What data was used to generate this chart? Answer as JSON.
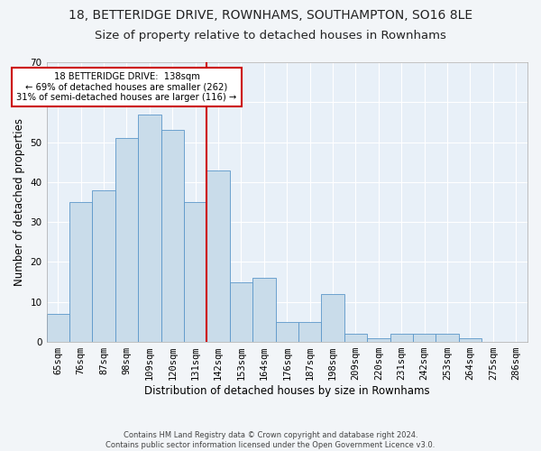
{
  "title1": "18, BETTERIDGE DRIVE, ROWNHAMS, SOUTHAMPTON, SO16 8LE",
  "title2": "Size of property relative to detached houses in Rownhams",
  "xlabel": "Distribution of detached houses by size in Rownhams",
  "ylabel": "Number of detached properties",
  "footer1": "Contains HM Land Registry data © Crown copyright and database right 2024.",
  "footer2": "Contains public sector information licensed under the Open Government Licence v3.0.",
  "bar_labels": [
    "65sqm",
    "76sqm",
    "87sqm",
    "98sqm",
    "109sqm",
    "120sqm",
    "131sqm",
    "142sqm",
    "153sqm",
    "164sqm",
    "176sqm",
    "187sqm",
    "198sqm",
    "209sqm",
    "220sqm",
    "231sqm",
    "242sqm",
    "253sqm",
    "264sqm",
    "275sqm",
    "286sqm"
  ],
  "bar_values": [
    7,
    35,
    38,
    51,
    57,
    53,
    35,
    43,
    15,
    16,
    5,
    5,
    12,
    2,
    1,
    2,
    2,
    2,
    1,
    0,
    0
  ],
  "num_bars": 21,
  "bar_color": "#c9dcea",
  "bar_edge_color": "#5b97c9",
  "vline_color": "#cc0000",
  "annotation_text": "18 BETTERIDGE DRIVE:  138sqm\n← 69% of detached houses are smaller (262)\n31% of semi-detached houses are larger (116) →",
  "annotation_box_color": "#ffffff",
  "annotation_box_edge": "#cc0000",
  "ylim": [
    0,
    70
  ],
  "yticks": [
    0,
    10,
    20,
    30,
    40,
    50,
    60,
    70
  ],
  "bg_color": "#e8f0f8",
  "grid_color": "#ffffff",
  "title1_fontsize": 10,
  "title2_fontsize": 9.5,
  "xlabel_fontsize": 8.5,
  "ylabel_fontsize": 8.5,
  "tick_fontsize": 7.5,
  "footer_fontsize": 6.0
}
